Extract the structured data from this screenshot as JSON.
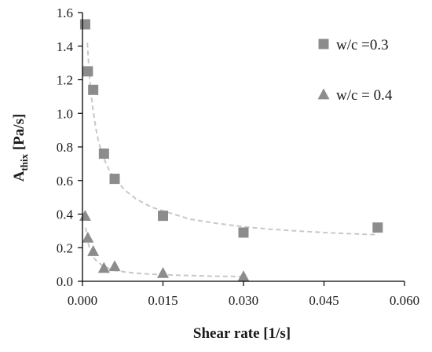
{
  "chart_data": {
    "type": "scatter",
    "title": "",
    "xlabel": "Shear rate  [1/s]",
    "ylabel_main": "A",
    "ylabel_sub": "thix",
    "ylabel_unit": " [Pa/s]",
    "xlim": [
      0,
      0.06
    ],
    "ylim": [
      0,
      1.6
    ],
    "x_ticks": [
      "0.000",
      "0.015",
      "0.030",
      "0.045",
      "0.060"
    ],
    "x_tick_values": [
      0,
      0.015,
      0.03,
      0.045,
      0.06
    ],
    "y_ticks": [
      "0.0",
      "0.2",
      "0.4",
      "0.6",
      "0.8",
      "1.0",
      "1.2",
      "1.4",
      "1.6"
    ],
    "y_tick_values": [
      0,
      0.2,
      0.4,
      0.6,
      0.8,
      1.0,
      1.2,
      1.4,
      1.6
    ],
    "grid": false,
    "legend_position": "top-right",
    "series": [
      {
        "name": "w/c =0.3",
        "marker": "square",
        "color": "#8c8c8c",
        "trend_color": "#c8c8c8",
        "trend_type": "power",
        "x": [
          0.0005,
          0.001,
          0.002,
          0.004,
          0.006,
          0.015,
          0.03,
          0.055
        ],
        "y": [
          1.53,
          1.25,
          1.14,
          0.76,
          0.61,
          0.39,
          0.29,
          0.32
        ],
        "trend_x": [
          0.0009,
          0.0012,
          0.0016,
          0.002,
          0.0025,
          0.003,
          0.004,
          0.005,
          0.006,
          0.008,
          0.01,
          0.013,
          0.016,
          0.02,
          0.025,
          0.03,
          0.035,
          0.04,
          0.045,
          0.05,
          0.055
        ],
        "trend_y": [
          1.42,
          1.27,
          1.12,
          1.01,
          0.91,
          0.83,
          0.73,
          0.66,
          0.61,
          0.54,
          0.49,
          0.44,
          0.41,
          0.37,
          0.345,
          0.325,
          0.31,
          0.3,
          0.29,
          0.283,
          0.277
        ]
      },
      {
        "name": "w/c = 0.4",
        "marker": "triangle",
        "color": "#8c8c8c",
        "trend_color": "#c8c8c8",
        "trend_type": "power",
        "x": [
          0.0005,
          0.001,
          0.002,
          0.004,
          0.006,
          0.015,
          0.03
        ],
        "y": [
          0.39,
          0.26,
          0.18,
          0.08,
          0.09,
          0.05,
          0.03
        ],
        "trend_x": [
          0.0006,
          0.0008,
          0.001,
          0.0013,
          0.0016,
          0.002,
          0.0025,
          0.003,
          0.004,
          0.005,
          0.006,
          0.008,
          0.01,
          0.013,
          0.016,
          0.02,
          0.025,
          0.03
        ],
        "trend_y": [
          0.32,
          0.27,
          0.235,
          0.2,
          0.17,
          0.145,
          0.125,
          0.11,
          0.09,
          0.075,
          0.065,
          0.055,
          0.048,
          0.042,
          0.038,
          0.034,
          0.03,
          0.028
        ]
      }
    ]
  }
}
